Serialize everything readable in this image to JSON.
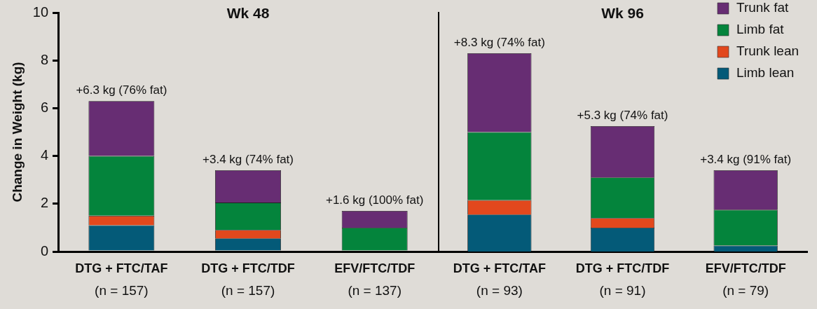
{
  "chart_data": [
    {
      "type": "bar",
      "title": "Wk 48",
      "ylabel": "Change in Weight (kg)",
      "categories": [
        "DTG + FTC/TAF\n(n = 157)",
        "DTG + FTC/TDF\n(n = 157)",
        "EFV/FTC/TDF\n(n = 137)"
      ],
      "stacked": true,
      "ylim": [
        0,
        10
      ],
      "yticks": [
        0,
        2,
        4,
        6,
        8,
        10
      ],
      "grid": false,
      "series": [
        {
          "color": "#045a78",
          "values": [
            1.1,
            0.55,
            0
          ]
        },
        {
          "color": "#e2481d",
          "values": [
            0.4,
            0.35,
            0
          ]
        },
        {
          "color": "#04843c",
          "values": [
            2.5,
            1.15,
            1.0
          ]
        },
        {
          "color": "#672d73",
          "values": [
            2.3,
            1.35,
            0.7
          ]
        }
      ],
      "totals": [
        "+6.3 kg (76% fat)",
        "+3.4 kg (74% fat)",
        "+1.6 kg (100% fat)"
      ]
    },
    {
      "type": "bar",
      "title": "Wk 96",
      "categories": [
        "DTG + FTC/TAF\n(n = 93)",
        "DTG + FTC/TDF\n(n = 91)",
        "EFV/FTC/TDF\n(n = 79)"
      ],
      "stacked": true,
      "ylim": [
        0,
        10
      ],
      "tick_labels": "x",
      "grid": false,
      "legend": "top right",
      "series": [
        {
          "name": "Limb lean",
          "color": "#045a78",
          "values": [
            1.55,
            1.0,
            0.25
          ]
        },
        {
          "name": "Trunk lean",
          "color": "#e2481d",
          "values": [
            0.6,
            0.4,
            0
          ]
        },
        {
          "name": "Limb fat",
          "color": "#04843c",
          "values": [
            2.85,
            1.7,
            1.5
          ]
        },
        {
          "name": "Trunk fat",
          "color": "#672d73",
          "values": [
            3.3,
            2.15,
            1.65
          ]
        }
      ],
      "totals": [
        "+8.3 kg (74% fat)",
        "+5.3 kg (74% fat)",
        "+3.4 kg (91% fat)"
      ]
    }
  ]
}
